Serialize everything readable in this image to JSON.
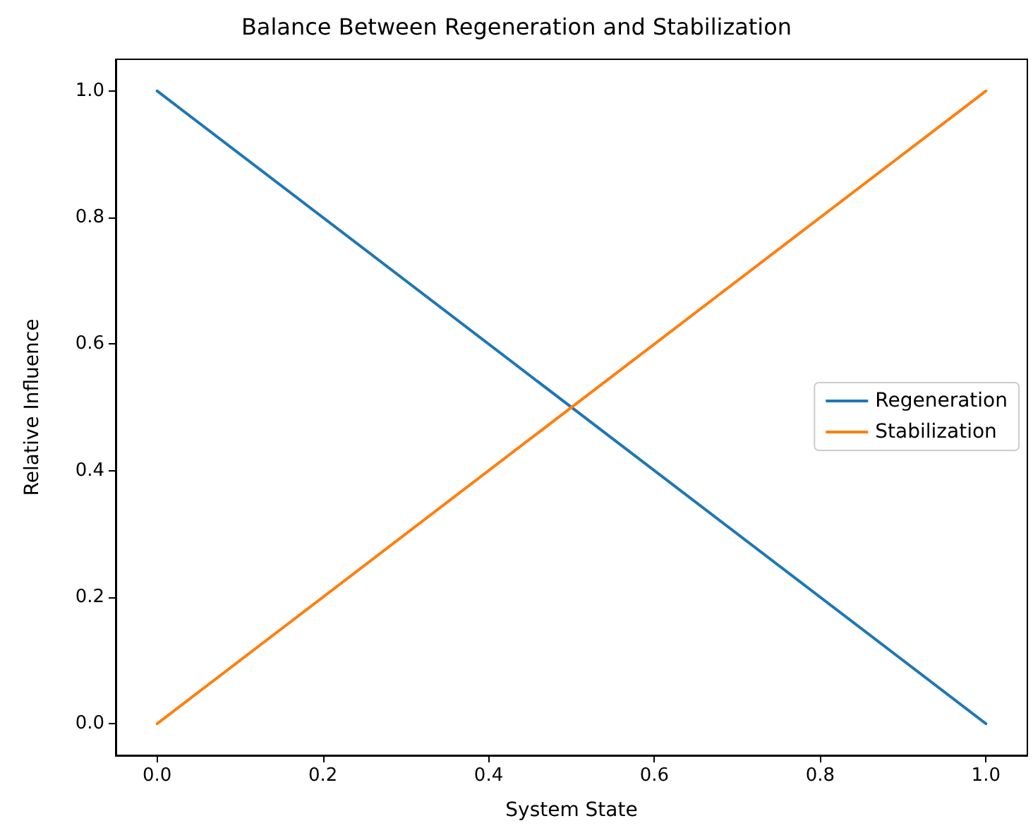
{
  "chart_data": {
    "type": "line",
    "title": "Balance Between Regeneration and Stabilization",
    "xlabel": "System State",
    "ylabel": "Relative Influence",
    "x": [
      0,
      1
    ],
    "series": [
      {
        "name": "Regeneration",
        "color": "#1f77b4",
        "values": [
          1,
          0
        ]
      },
      {
        "name": "Stabilization",
        "color": "#ff7f0e",
        "values": [
          0,
          1
        ]
      }
    ],
    "xlim": [
      -0.05,
      1.05
    ],
    "xticks": [
      {
        "value": 0,
        "label": "0.0"
      },
      {
        "value": 0.2,
        "label": "0.2"
      },
      {
        "value": 0.4,
        "label": "0.4"
      },
      {
        "value": 0.6,
        "label": "0.6"
      },
      {
        "value": 0.8,
        "label": "0.8"
      },
      {
        "value": 1,
        "label": "1.0"
      }
    ],
    "ylim": [
      -0.05,
      1.05
    ],
    "yticks": [
      {
        "value": 0,
        "label": "0.0"
      },
      {
        "value": 0.2,
        "label": "0.2"
      },
      {
        "value": 0.4,
        "label": "0.4"
      },
      {
        "value": 0.6,
        "label": "0.6"
      },
      {
        "value": 0.8,
        "label": "0.8"
      },
      {
        "value": 1,
        "label": "1.0"
      }
    ],
    "grid": false,
    "legend": "right",
    "marker": "none",
    "line_style": "solid"
  }
}
